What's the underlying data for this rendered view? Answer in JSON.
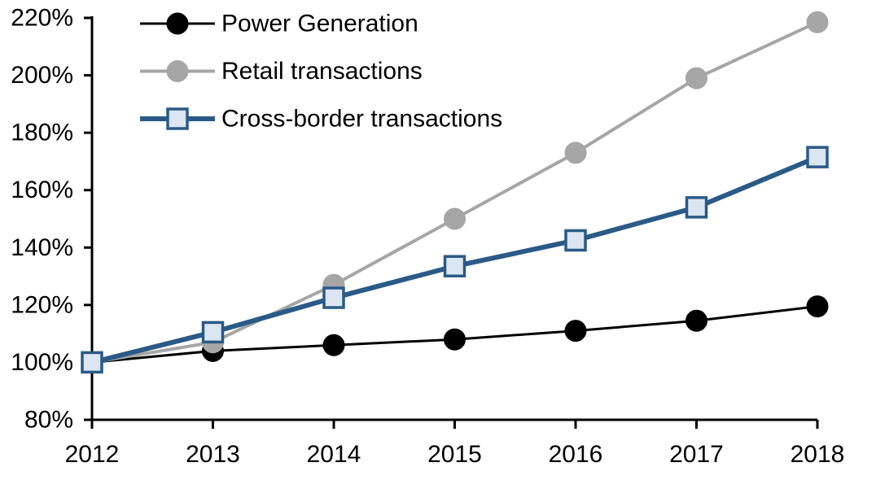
{
  "chart_data": {
    "type": "line",
    "title": "",
    "xlabel": "",
    "ylabel": "",
    "categories": [
      "2012",
      "2013",
      "2014",
      "2015",
      "2016",
      "2017",
      "2018"
    ],
    "ylim": [
      80,
      220
    ],
    "ytick_step": 20,
    "yticks": [
      {
        "value": 80,
        "label": "80%"
      },
      {
        "value": 100,
        "label": "100%"
      },
      {
        "value": 120,
        "label": "120%"
      },
      {
        "value": 140,
        "label": "140%"
      },
      {
        "value": 160,
        "label": "160%"
      },
      {
        "value": 180,
        "label": "180%"
      },
      {
        "value": 200,
        "label": "200%"
      },
      {
        "value": 220,
        "label": "220%"
      }
    ],
    "grid": false,
    "legend_position": "top-left-inside",
    "background_color": "#FFFFFF",
    "axis_color": "#000000",
    "series": [
      {
        "name": "Power Generation",
        "color": "#000000",
        "marker": "circle",
        "marker_fill": "#000000",
        "marker_stroke": "#000000",
        "line_width": 3,
        "values": [
          100,
          104,
          106,
          108,
          111,
          114.5,
          119.5
        ]
      },
      {
        "name": "Retail transactions",
        "color": "#A6A6A6",
        "marker": "circle",
        "marker_fill": "#A6A6A6",
        "marker_stroke": "#A6A6A6",
        "line_width": 4,
        "values": [
          100,
          107,
          127,
          150,
          173,
          199,
          218.5
        ]
      },
      {
        "name": "Cross-border transactions",
        "color": "#2A5A87",
        "marker": "square",
        "marker_fill": "#DCE6F2",
        "marker_stroke": "#2A5A87",
        "line_width": 6,
        "values": [
          100,
          110.5,
          122.5,
          133.5,
          142.5,
          154,
          171.5
        ]
      }
    ]
  }
}
